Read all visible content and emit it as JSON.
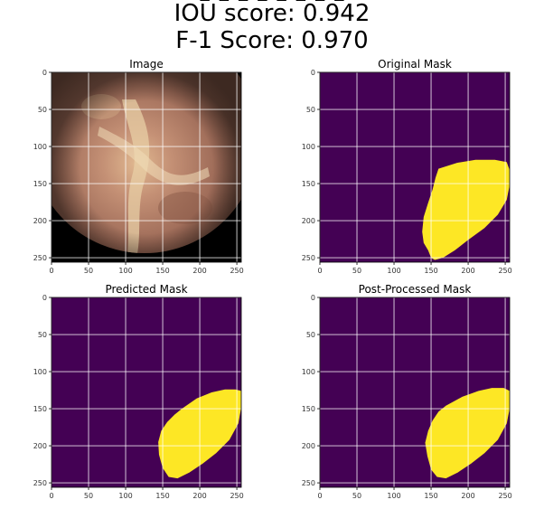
{
  "figure": {
    "cut_line": "– – – – – – – –",
    "iou_text": "IOU score: 0.942",
    "f1_text": "F-1 Score: 0.970"
  },
  "chart_data": [
    {
      "type": "image",
      "title": "Image",
      "content": "endoscopic image (circular field of view on black background)",
      "xlim": [
        0,
        256
      ],
      "ylim": [
        256,
        0
      ],
      "xticks": [
        0,
        50,
        100,
        150,
        200,
        250
      ],
      "yticks": [
        0,
        50,
        100,
        150,
        200,
        250
      ],
      "grid": true
    },
    {
      "type": "heatmap",
      "title": "Original Mask",
      "background_color": "#440154",
      "mask_color": "#fde725",
      "mask_polygon": [
        [
          160,
          130
        ],
        [
          185,
          122
        ],
        [
          210,
          118
        ],
        [
          236,
          118
        ],
        [
          252,
          121
        ],
        [
          257,
          132
        ],
        [
          257,
          152
        ],
        [
          252,
          172
        ],
        [
          240,
          192
        ],
        [
          222,
          210
        ],
        [
          200,
          226
        ],
        [
          182,
          240
        ],
        [
          166,
          250
        ],
        [
          155,
          253
        ],
        [
          150,
          250
        ],
        [
          146,
          240
        ],
        [
          140,
          230
        ],
        [
          138,
          215
        ],
        [
          140,
          195
        ],
        [
          146,
          176
        ],
        [
          152,
          158
        ],
        [
          156,
          142
        ]
      ],
      "xlim": [
        0,
        256
      ],
      "ylim": [
        256,
        0
      ],
      "xticks": [
        0,
        50,
        100,
        150,
        200,
        250
      ],
      "yticks": [
        0,
        50,
        100,
        150,
        200,
        250
      ],
      "grid": true
    },
    {
      "type": "heatmap",
      "title": "Predicted Mask",
      "background_color": "#440154",
      "mask_color": "#fde725",
      "mask_polygon": [
        [
          176,
          150
        ],
        [
          196,
          136
        ],
        [
          216,
          128
        ],
        [
          234,
          124
        ],
        [
          248,
          124
        ],
        [
          257,
          126
        ],
        [
          257,
          148
        ],
        [
          252,
          170
        ],
        [
          240,
          192
        ],
        [
          222,
          210
        ],
        [
          204,
          224
        ],
        [
          186,
          236
        ],
        [
          170,
          244
        ],
        [
          158,
          242
        ],
        [
          150,
          230
        ],
        [
          145,
          212
        ],
        [
          144,
          195
        ],
        [
          148,
          180
        ],
        [
          156,
          168
        ],
        [
          166,
          158
        ]
      ],
      "xlim": [
        0,
        256
      ],
      "ylim": [
        256,
        0
      ],
      "xticks": [
        0,
        50,
        100,
        150,
        200,
        250
      ],
      "yticks": [
        0,
        50,
        100,
        150,
        200,
        250
      ],
      "grid": true
    },
    {
      "type": "heatmap",
      "title": "Post-Processed Mask",
      "background_color": "#440154",
      "mask_color": "#fde725",
      "mask_polygon": [
        [
          170,
          146
        ],
        [
          192,
          134
        ],
        [
          214,
          126
        ],
        [
          232,
          122
        ],
        [
          248,
          122
        ],
        [
          257,
          126
        ],
        [
          257,
          150
        ],
        [
          252,
          170
        ],
        [
          240,
          192
        ],
        [
          222,
          210
        ],
        [
          204,
          224
        ],
        [
          186,
          236
        ],
        [
          170,
          244
        ],
        [
          158,
          242
        ],
        [
          150,
          232
        ],
        [
          145,
          214
        ],
        [
          142,
          196
        ],
        [
          146,
          180
        ],
        [
          152,
          166
        ],
        [
          160,
          154
        ]
      ],
      "xlim": [
        0,
        256
      ],
      "ylim": [
        256,
        0
      ],
      "xticks": [
        0,
        50,
        100,
        150,
        200,
        250
      ],
      "yticks": [
        0,
        50,
        100,
        150,
        200,
        250
      ],
      "grid": true
    }
  ]
}
